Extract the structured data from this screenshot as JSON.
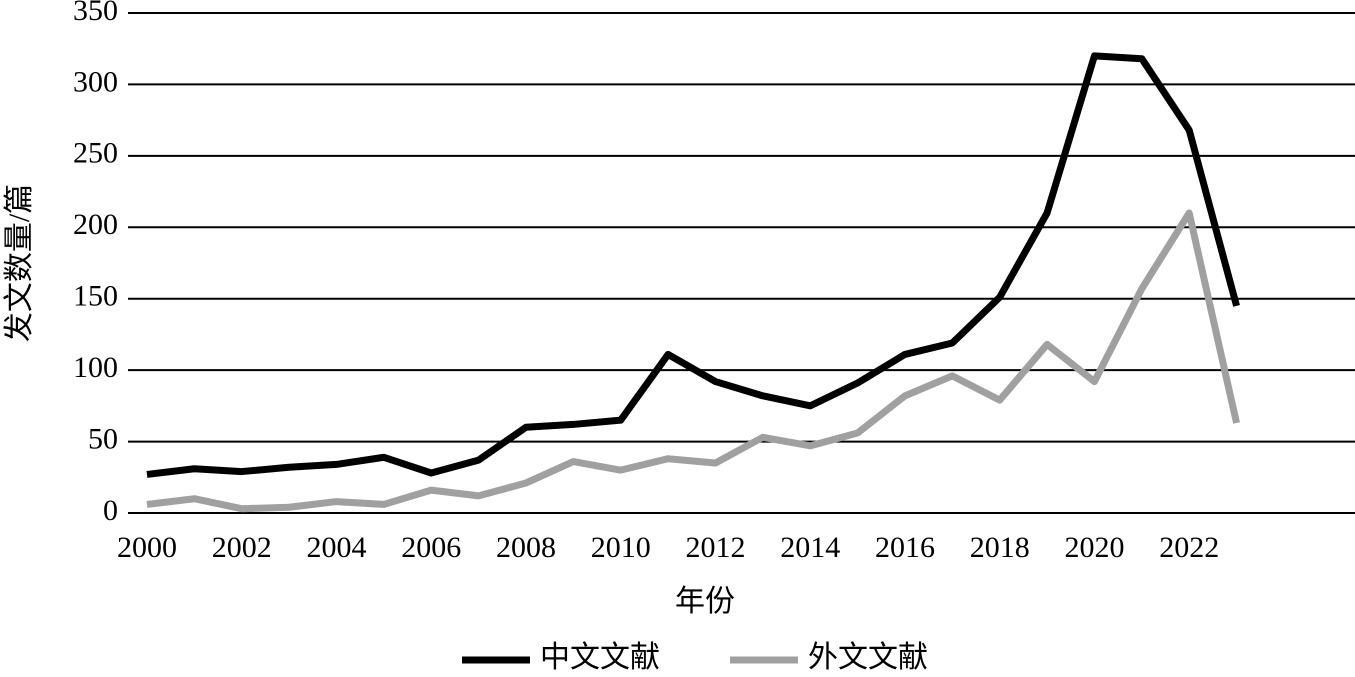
{
  "chart_data": {
    "type": "line",
    "x_label": "年份",
    "y_label": "发文数量/篇",
    "x": [
      2000,
      2001,
      2002,
      2003,
      2004,
      2005,
      2006,
      2007,
      2008,
      2009,
      2010,
      2011,
      2012,
      2013,
      2014,
      2015,
      2016,
      2017,
      2018,
      2019,
      2020,
      2021,
      2022,
      2023
    ],
    "series": [
      {
        "name": "中文文献",
        "color": "#000000",
        "values": [
          27,
          31,
          29,
          32,
          34,
          39,
          28,
          37,
          60,
          62,
          65,
          111,
          92,
          82,
          75,
          91,
          111,
          119,
          151,
          210,
          320,
          318,
          268,
          145
        ]
      },
      {
        "name": "外文文献",
        "color": "#a0a0a0",
        "values": [
          6,
          10,
          3,
          4,
          8,
          6,
          16,
          12,
          21,
          36,
          30,
          38,
          35,
          53,
          47,
          56,
          82,
          96,
          79,
          118,
          92,
          157,
          210,
          63
        ]
      }
    ],
    "xlim": [
      1999.6,
      2025.5
    ],
    "xticks": [
      2000,
      2002,
      2004,
      2006,
      2008,
      2010,
      2012,
      2014,
      2016,
      2018,
      2020,
      2022
    ],
    "ylim": [
      0,
      350
    ],
    "yticks": [
      0,
      50,
      100,
      150,
      200,
      250,
      300,
      350
    ],
    "grid": true,
    "legend": "bottom"
  }
}
